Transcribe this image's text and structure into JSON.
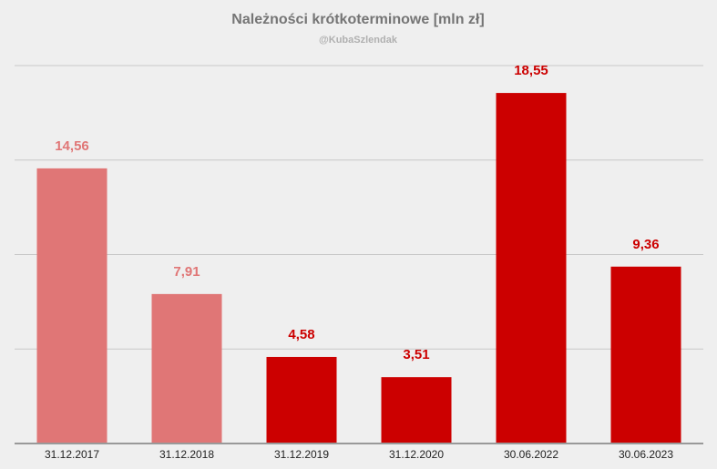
{
  "chart_data": {
    "type": "bar",
    "title": "Należności krótkoterminowe [mln zł]",
    "subtitle": "@KubaSzlendak",
    "categories": [
      "31.12.2017",
      "31.12.2018",
      "31.12.2019",
      "31.12.2020",
      "30.06.2022",
      "30.06.2023"
    ],
    "values": [
      14.56,
      7.91,
      4.58,
      3.51,
      18.55,
      9.36
    ],
    "value_labels": [
      "14,56",
      "7,91",
      "4,58",
      "3,51",
      "18,55",
      "9,36"
    ],
    "bar_colors": [
      "#e07676",
      "#e07676",
      "#cc0000",
      "#cc0000",
      "#cc0000",
      "#cc0000"
    ],
    "label_colors": [
      "#e07676",
      "#e07676",
      "#cc0000",
      "#cc0000",
      "#cc0000",
      "#cc0000"
    ],
    "ylim": [
      0,
      20
    ],
    "gridlines": [
      5,
      10,
      15,
      20
    ],
    "grid": true,
    "xlabel": "",
    "ylabel": ""
  }
}
